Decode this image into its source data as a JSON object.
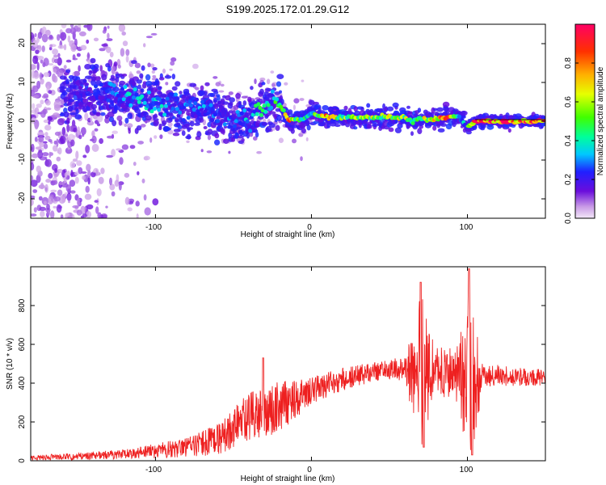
{
  "figure_title": "S199.2025.172.01.29.G12",
  "chart_data": [
    {
      "type": "heatmap",
      "title": "S199.2025.172.01.29.G12",
      "xlabel": "Height of straight line (km)",
      "ylabel": "Frequency (Hz)",
      "xlim": [
        -180,
        150
      ],
      "ylim": [
        -25,
        25
      ],
      "xticks": [
        "-100",
        "0",
        "100"
      ],
      "yticks": [
        "20",
        "10",
        "0",
        "-10",
        "-20"
      ],
      "colorbar": {
        "label": "Normalized spectral amplitude",
        "range": [
          0.0,
          1.0
        ],
        "ticks": [
          "0.0",
          "0.2",
          "0.4",
          "0.6",
          "0.8"
        ],
        "colormap": "rainbow (purple → blue → cyan → green → yellow → orange → red)"
      },
      "ridge": {
        "description": "dominant frequency track (Hz) vs height (km)",
        "x": [
          -150,
          -130,
          -120,
          -110,
          -100,
          -90,
          -80,
          -70,
          -60,
          -50,
          -40,
          -30,
          -20,
          -15,
          -10,
          -5,
          0,
          10,
          20,
          40,
          60,
          65,
          70,
          80,
          90,
          95,
          100,
          105,
          120,
          150
        ],
        "y": [
          7,
          7,
          6.5,
          5.5,
          5,
          4,
          3.5,
          3,
          2,
          0.5,
          1,
          4,
          4,
          0.5,
          0.5,
          0.5,
          2,
          1,
          1,
          1,
          1,
          0,
          0.5,
          0.5,
          1.5,
          1,
          -1.5,
          0,
          0,
          0
        ],
        "amplitude": [
          0.2,
          0.25,
          0.35,
          0.4,
          0.35,
          0.3,
          0.3,
          0.3,
          0.25,
          0.3,
          0.35,
          0.45,
          0.5,
          0.85,
          0.5,
          0.5,
          0.4,
          0.8,
          0.55,
          0.6,
          0.6,
          0.4,
          0.6,
          0.75,
          0.85,
          0.4,
          0.35,
          0.95,
          0.95,
          0.9
        ]
      },
      "noise_region": {
        "x_range": [
          -180,
          -120
        ],
        "y_range": [
          -25,
          25
        ],
        "amplitude": 0.1
      }
    },
    {
      "type": "line",
      "xlabel": "Height of straight line (km)",
      "ylabel": "SNR (10 * v/v)",
      "xlim": [
        -180,
        150
      ],
      "ylim": [
        0,
        1000
      ],
      "xticks": [
        "-100",
        "0",
        "100"
      ],
      "yticks": [
        "0",
        "200",
        "400",
        "600",
        "800"
      ],
      "color": "#ff0000",
      "series": [
        {
          "envelope": {
            "x": [
              -180,
              -160,
              -140,
              -120,
              -100,
              -80,
              -60,
              -50,
              -40,
              -30,
              -20,
              -10,
              0,
              10,
              20,
              30,
              40,
              50,
              60,
              70,
              80,
              90,
              100,
              105,
              110,
              120,
              130,
              140,
              150
            ],
            "y": [
              15,
              20,
              25,
              35,
              50,
              70,
              110,
              170,
              220,
              250,
              280,
              320,
              360,
              390,
              420,
              440,
              460,
              470,
              475,
              470,
              460,
              455,
              440,
              430,
              440,
              440,
              435,
              430,
              430
            ]
          },
          "noise_amplitude": {
            "x": [
              -180,
              -120,
              -80,
              -60,
              -40,
              -20,
              0,
              40,
              60,
              65,
              70,
              75,
              80,
              95,
              100,
              105,
              110,
              150
            ],
            "y": [
              12,
              25,
              50,
              80,
              130,
              130,
              70,
              50,
              60,
              250,
              450,
              250,
              120,
              150,
              550,
              300,
              60,
              40
            ]
          },
          "peaks": [
            {
              "x": -31,
              "y": 530
            },
            {
              "x": 70,
              "y": 920
            },
            {
              "x": 72,
              "y": 70
            },
            {
              "x": 101,
              "y": 990
            },
            {
              "x": 103,
              "y": 30
            }
          ]
        }
      ]
    }
  ]
}
